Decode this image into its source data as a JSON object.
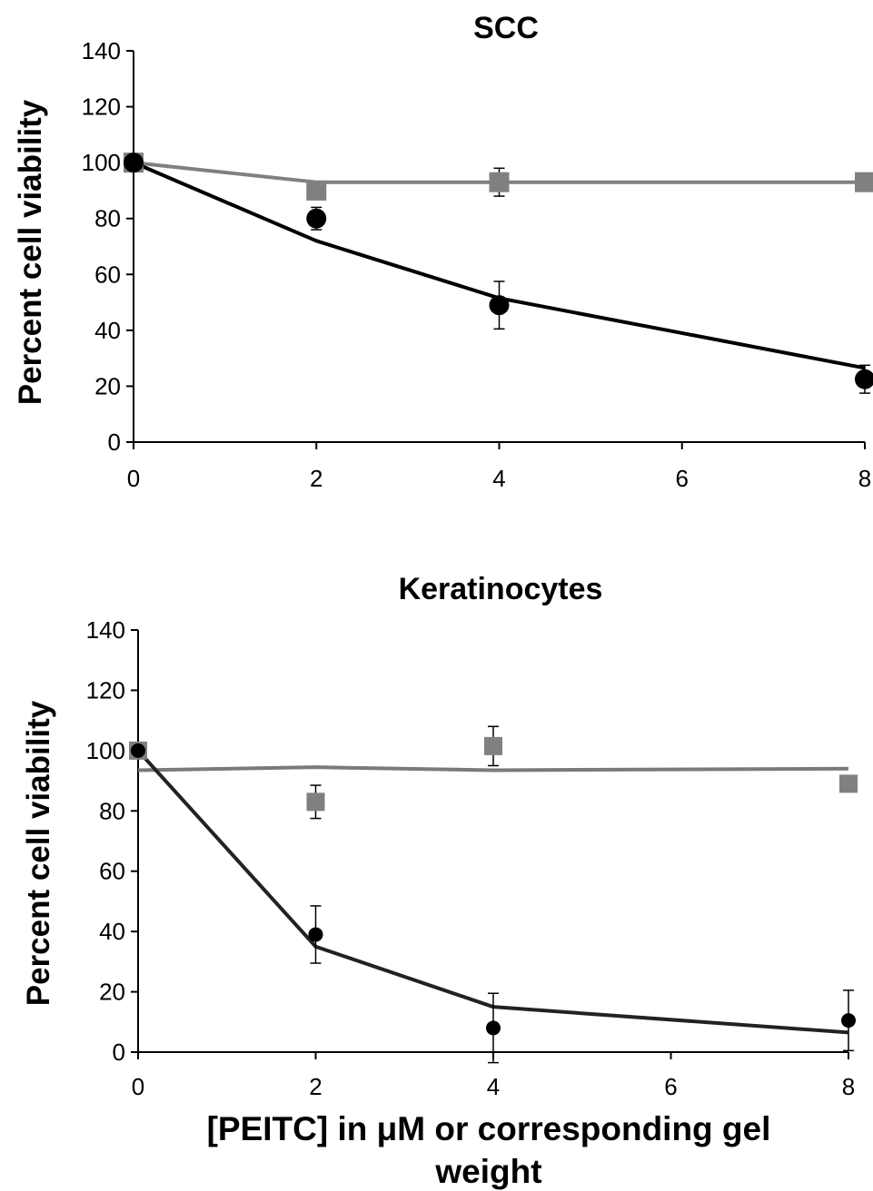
{
  "chart_data": [
    {
      "type": "scatter",
      "title": "SCC",
      "ylabel": "Percent cell viability",
      "xlabel": "",
      "xlim": [
        0,
        8
      ],
      "ylim": [
        0,
        140
      ],
      "xticks": [
        0,
        2,
        4,
        6,
        8
      ],
      "yticks": [
        0,
        20,
        40,
        60,
        80,
        100,
        120,
        140
      ],
      "series": [
        {
          "marker": "square",
          "color": "#808080",
          "points": [
            {
              "x": 0,
              "y": 100,
              "err": 0
            },
            {
              "x": 2,
              "y": 90,
              "err": 0
            },
            {
              "x": 4,
              "y": 93,
              "err": 5
            },
            {
              "x": 8,
              "y": 93,
              "err": 0
            }
          ],
          "fit": [
            [
              0,
              100
            ],
            [
              2,
              93
            ],
            [
              4,
              93
            ],
            [
              8,
              93
            ]
          ]
        },
        {
          "marker": "circle",
          "color": "#000000",
          "points": [
            {
              "x": 0,
              "y": 100,
              "err": 0
            },
            {
              "x": 2,
              "y": 80,
              "err": 4
            },
            {
              "x": 4,
              "y": 49,
              "err": 8.5
            },
            {
              "x": 8,
              "y": 22.5,
              "err": 5
            }
          ],
          "fit": [
            [
              0,
              100
            ],
            [
              2,
              72
            ],
            [
              4,
              51.5
            ],
            [
              6,
              39
            ],
            [
              8,
              26.5
            ]
          ]
        }
      ]
    },
    {
      "type": "scatter",
      "title": "Keratinocytes",
      "ylabel": "Percent cell viability",
      "xlabel": "[PEITC] in μM or corresponding gel weight",
      "xlim": [
        0,
        8
      ],
      "ylim": [
        0,
        140
      ],
      "xticks": [
        0,
        2,
        4,
        6,
        8
      ],
      "yticks": [
        0,
        20,
        40,
        60,
        80,
        100,
        120,
        140
      ],
      "series": [
        {
          "marker": "square",
          "color": "#808080",
          "points": [
            {
              "x": 0,
              "y": 100,
              "err": 0
            },
            {
              "x": 2,
              "y": 83,
              "err": 5.5
            },
            {
              "x": 4,
              "y": 101.5,
              "err": 6.5
            },
            {
              "x": 8,
              "y": 89,
              "err": 0
            }
          ],
          "fit": [
            [
              0,
              93.5
            ],
            [
              2,
              94.5
            ],
            [
              4,
              93.5
            ],
            [
              8,
              94
            ]
          ]
        },
        {
          "marker": "circle",
          "color": "#000000",
          "points": [
            {
              "x": 0,
              "y": 100,
              "err": 0
            },
            {
              "x": 2,
              "y": 39,
              "err": 9.5
            },
            {
              "x": 4,
              "y": 8,
              "err": 11.5
            },
            {
              "x": 8,
              "y": 10.5,
              "err": 10
            }
          ],
          "fit": [
            [
              0,
              100
            ],
            [
              2,
              35
            ],
            [
              4,
              15
            ],
            [
              8,
              6.5
            ]
          ]
        }
      ]
    }
  ]
}
